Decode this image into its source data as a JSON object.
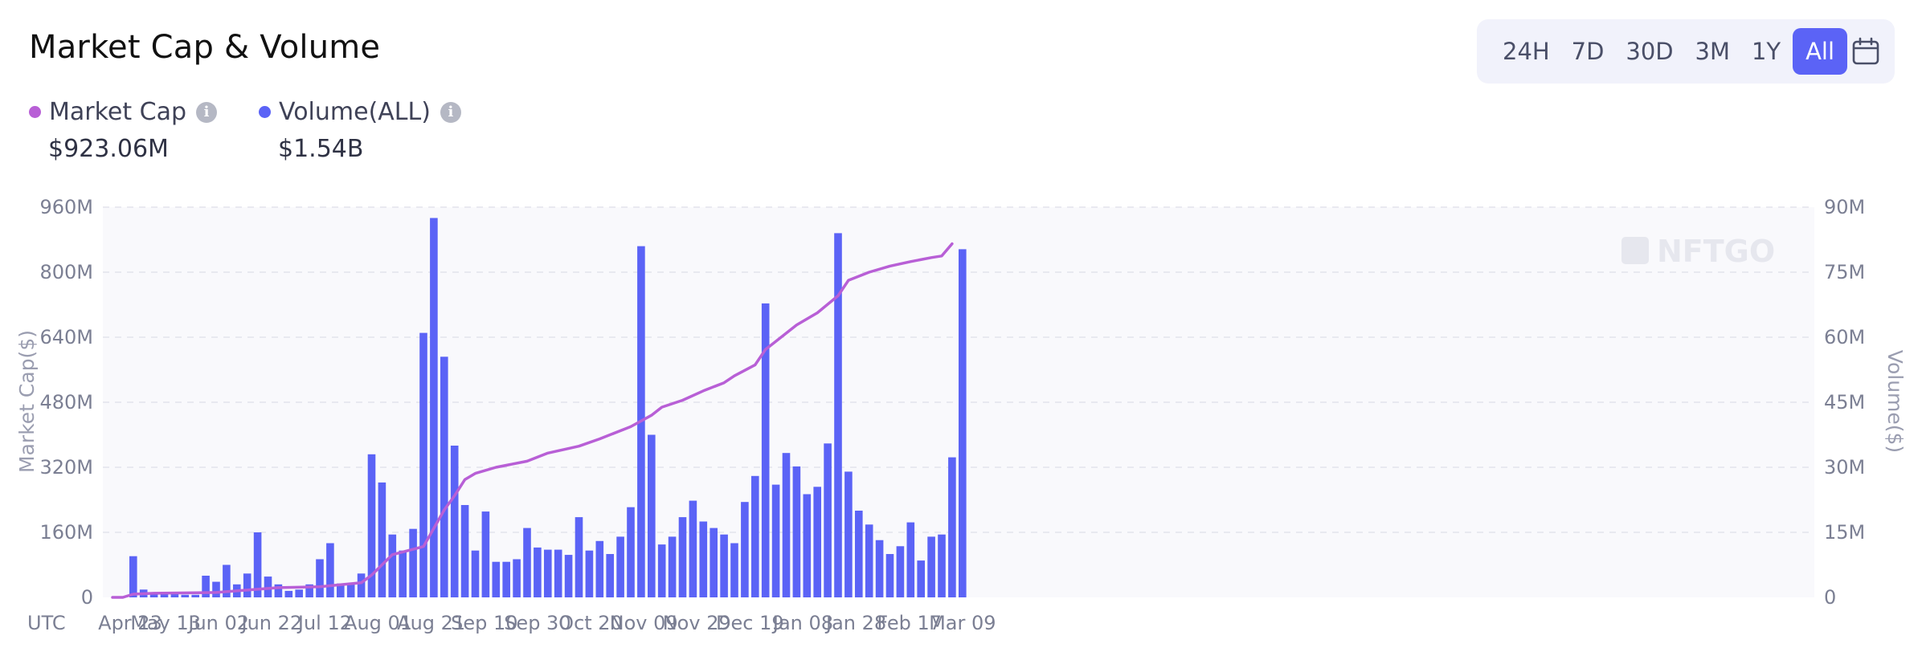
{
  "header": {
    "title": "Market Cap & Volume"
  },
  "range": {
    "options": [
      "24H",
      "7D",
      "30D",
      "3M",
      "1Y",
      "All"
    ],
    "active": "All",
    "calendar_icon": "calendar-icon"
  },
  "legend": {
    "market_cap": {
      "label": "Market Cap",
      "value": "$923.06M",
      "color": "#b85fd6",
      "icon": "info-icon"
    },
    "volume": {
      "label": "Volume(ALL)",
      "value": "$1.54B",
      "color": "#5b63f6",
      "icon": "info-icon"
    }
  },
  "watermark": "NFTGO",
  "chart_data": {
    "type": "bar",
    "title": "Market Cap & Volume",
    "xlabel_prefix": "UTC",
    "x_tick_labels": [
      "Apr 23",
      "May 13",
      "Jun 02",
      "Jun 22",
      "Jul 12",
      "Aug 01",
      "Aug 21",
      "Sep 10",
      "Sep 30",
      "Oct 20",
      "Nov 09",
      "Nov 29",
      "Dec 19",
      "Jan 08",
      "Jan 28",
      "Feb 17",
      "Mar 09"
    ],
    "left_axis": {
      "label": "Market Cap($)",
      "ticks": [
        "0",
        "160M",
        "320M",
        "480M",
        "640M",
        "800M",
        "960M"
      ],
      "range": [
        0,
        960
      ]
    },
    "right_axis": {
      "label": "Volume($)",
      "ticks": [
        "0",
        "15M",
        "30M",
        "45M",
        "60M",
        "75M",
        "90M"
      ],
      "range": [
        0,
        90
      ]
    },
    "units": "millions USD",
    "grid": true,
    "series": [
      {
        "name": "Volume(ALL)",
        "type": "bar",
        "axis": "right",
        "color": "#5b63f6",
        "values": [
          0,
          0,
          9.5,
          1.8,
          0.8,
          0.8,
          0.8,
          0.6,
          0.6,
          5,
          3.6,
          7.5,
          3,
          5.5,
          15,
          4.8,
          3,
          1.5,
          1.8,
          3,
          8.8,
          12.5,
          3.2,
          3.2,
          5.5,
          33,
          26.5,
          14.5,
          10.8,
          15.8,
          61,
          87.5,
          55.5,
          35,
          21.3,
          10.8,
          19.8,
          8.2,
          8.2,
          8.8,
          16,
          11.5,
          11,
          11,
          9.8,
          18.5,
          10.8,
          13,
          10,
          14,
          20.8,
          81,
          37.5,
          12.2,
          14,
          18.5,
          22.3,
          17.5,
          16,
          14.5,
          12.5,
          22,
          28,
          67.8,
          26,
          33.3,
          30.2,
          23.8,
          25.5,
          35.5,
          84,
          29,
          20,
          16.8,
          13.2,
          10,
          11.8,
          17.3,
          8.5,
          14,
          14.5,
          32.3,
          80.3
        ]
      },
      {
        "name": "Market Cap",
        "type": "line",
        "axis": "left",
        "color": "#b85fd6",
        "points": [
          [
            0,
            0
          ],
          [
            1,
            0
          ],
          [
            2,
            8
          ],
          [
            4,
            10
          ],
          [
            10,
            12
          ],
          [
            16,
            24
          ],
          [
            20,
            26
          ],
          [
            24,
            36
          ],
          [
            25,
            55
          ],
          [
            27,
            105
          ],
          [
            30,
            125
          ],
          [
            32,
            215
          ],
          [
            33,
            250
          ],
          [
            34,
            290
          ],
          [
            35,
            305
          ],
          [
            37,
            320
          ],
          [
            40,
            335
          ],
          [
            42,
            355
          ],
          [
            45,
            372
          ],
          [
            47,
            390
          ],
          [
            50,
            420
          ],
          [
            52,
            448
          ],
          [
            53,
            468
          ],
          [
            55,
            485
          ],
          [
            57,
            508
          ],
          [
            59,
            528
          ],
          [
            60,
            545
          ],
          [
            62,
            572
          ],
          [
            63,
            610
          ],
          [
            64,
            630
          ],
          [
            66,
            670
          ],
          [
            68,
            700
          ],
          [
            70,
            742
          ],
          [
            71,
            780
          ],
          [
            73,
            800
          ],
          [
            75,
            815
          ],
          [
            77,
            826
          ],
          [
            79,
            836
          ],
          [
            80,
            840
          ],
          [
            81,
            870
          ]
        ]
      }
    ]
  }
}
